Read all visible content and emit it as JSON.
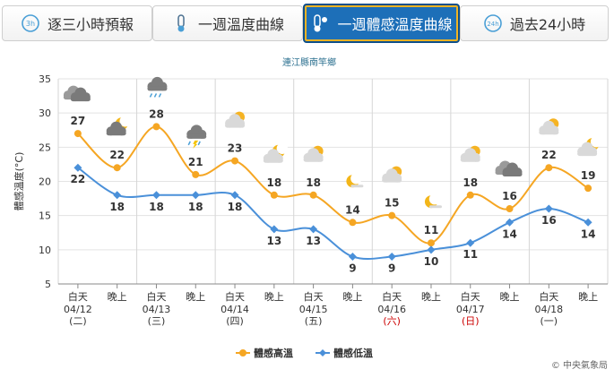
{
  "tabs": [
    {
      "label": "逐三小時預報",
      "icon": "three-hour-icon",
      "active": false
    },
    {
      "label": "一週溫度曲線",
      "icon": "thermometer-icon",
      "active": false
    },
    {
      "label": "一週體感溫度曲線",
      "icon": "feels-like-thermometer-icon",
      "active": true
    },
    {
      "label": "過去24小時",
      "icon": "past-24h-icon",
      "active": false
    }
  ],
  "chart_data": {
    "type": "line",
    "title": "連江縣南竿鄉",
    "ylabel": "體感溫度(°C)",
    "ylim": [
      5,
      35
    ],
    "yticks": [
      5,
      10,
      15,
      20,
      25,
      30,
      35
    ],
    "grid": true,
    "legend_position": "bottom-center",
    "categories": [
      {
        "period": "白天",
        "date": "04/12",
        "weekday": "(二)",
        "weekend": false
      },
      {
        "period": "晚上",
        "date": "",
        "weekday": "",
        "weekend": false
      },
      {
        "period": "白天",
        "date": "04/13",
        "weekday": "(三)",
        "weekend": false
      },
      {
        "period": "晚上",
        "date": "",
        "weekday": "",
        "weekend": false
      },
      {
        "period": "白天",
        "date": "04/14",
        "weekday": "(四)",
        "weekend": false
      },
      {
        "period": "晚上",
        "date": "",
        "weekday": "",
        "weekend": false
      },
      {
        "period": "白天",
        "date": "04/15",
        "weekday": "(五)",
        "weekend": false
      },
      {
        "period": "晚上",
        "date": "",
        "weekday": "",
        "weekend": false
      },
      {
        "period": "白天",
        "date": "04/16",
        "weekday": "(六)",
        "weekend": true
      },
      {
        "period": "晚上",
        "date": "",
        "weekday": "",
        "weekend": false
      },
      {
        "period": "白天",
        "date": "04/17",
        "weekday": "(日)",
        "weekend": true
      },
      {
        "period": "晚上",
        "date": "",
        "weekday": "",
        "weekend": false
      },
      {
        "period": "白天",
        "date": "04/18",
        "weekday": "(一)",
        "weekend": false
      },
      {
        "period": "晚上",
        "date": "",
        "weekday": "",
        "weekend": false
      }
    ],
    "series": [
      {
        "name": "體感高溫",
        "color": "#f5a623",
        "values": [
          27,
          22,
          28,
          21,
          23,
          18,
          18,
          14,
          15,
          11,
          18,
          16,
          22,
          19
        ]
      },
      {
        "name": "體感低溫",
        "color": "#4a90d9",
        "values": [
          22,
          18,
          18,
          18,
          18,
          13,
          13,
          9,
          9,
          10,
          11,
          14,
          16,
          14
        ]
      }
    ],
    "weather_icons": [
      "cloudy-icon",
      "cloudy-night-icon",
      "rain-cloud-icon",
      "thunder-rain-icon",
      "partly-cloudy-day-icon",
      "partly-cloudy-night-icon",
      "partly-cloudy-day-icon",
      "clear-night-icon",
      "partly-cloudy-day-icon",
      "clear-night-icon",
      "partly-cloudy-day-icon",
      "cloudy-icon",
      "partly-cloudy-day-icon",
      "partly-cloudy-night-icon"
    ],
    "weekend_color": "#cc0000"
  },
  "credit": "© 中央氣象局"
}
